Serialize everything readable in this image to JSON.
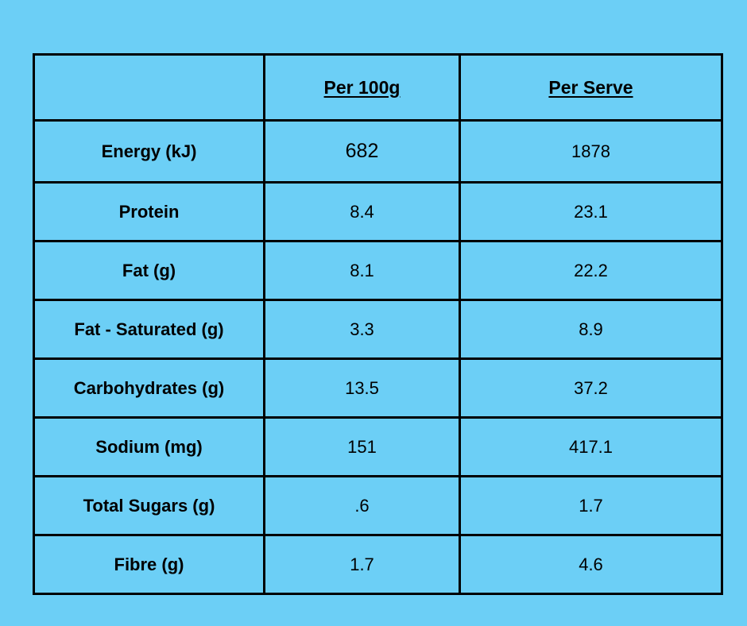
{
  "table": {
    "headers": [
      "",
      "Per 100g",
      "Per Serve"
    ],
    "rows": [
      {
        "label": "Energy (kJ)",
        "per_100g": "682",
        "per_serve": "1878"
      },
      {
        "label": "Protein",
        "per_100g": "8.4",
        "per_serve": "23.1"
      },
      {
        "label": "Fat (g)",
        "per_100g": "8.1",
        "per_serve": "22.2"
      },
      {
        "label": "Fat - Saturated (g)",
        "per_100g": "3.3",
        "per_serve": "8.9"
      },
      {
        "label": "Carbohydrates (g)",
        "per_100g": "13.5",
        "per_serve": "37.2"
      },
      {
        "label": "Sodium (mg)",
        "per_100g": "151",
        "per_serve": "417.1"
      },
      {
        "label": "Total Sugars (g)",
        "per_100g": ".6",
        "per_serve": "1.7"
      },
      {
        "label": "Fibre (g)",
        "per_100g": "1.7",
        "per_serve": "4.6"
      }
    ]
  },
  "colors": {
    "background": "#6ccff6",
    "border": "#000000",
    "text": "#000000"
  }
}
